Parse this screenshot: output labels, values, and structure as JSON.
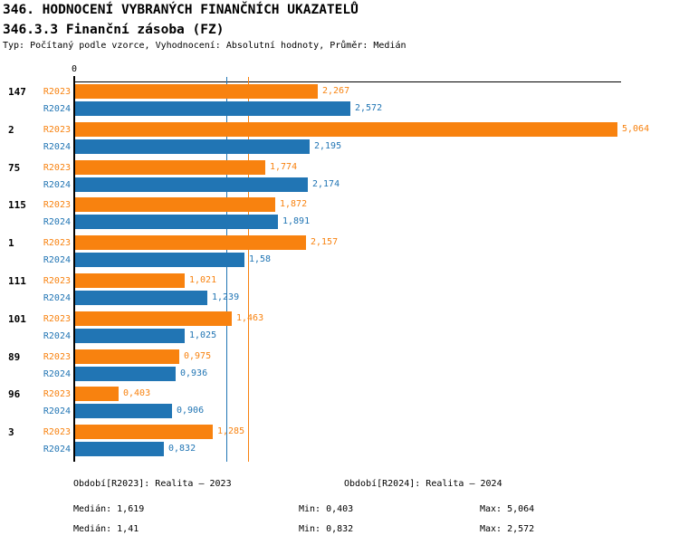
{
  "header": {
    "title": "346. HODNOCENÍ VYBRANÝCH FINANČNÍCH UKAZATELŮ",
    "subtitle": "346.3.3 Finanční zásoba (FZ)",
    "meta": "Typ: Počítaný podle vzorce, Vyhodnocení: Absolutní hodnoty, Průměr: Medián"
  },
  "colors": {
    "r2023": "#F8820F",
    "r2024": "#2175B4",
    "axis": "#000000"
  },
  "chart_data": {
    "type": "bar",
    "orientation": "horizontal",
    "title": "346.3.3 Finanční zásoba (FZ)",
    "xlabel": "",
    "ylabel": "",
    "xlim": [
      0,
      5.11
    ],
    "zero_label": "0",
    "grid": false,
    "legend_position": "none",
    "categories": [
      "147",
      "2",
      "75",
      "115",
      "1",
      "111",
      "101",
      "89",
      "96",
      "3"
    ],
    "series": [
      {
        "name": "R2023",
        "color": "#F8820F",
        "values": [
          2.267,
          5.064,
          1.774,
          1.872,
          2.157,
          1.021,
          1.463,
          0.975,
          0.403,
          1.285
        ],
        "labels": [
          "2,267",
          "5,064",
          "1,774",
          "1,872",
          "2,157",
          "1,021",
          "1,463",
          "0,975",
          "0,403",
          "1,285"
        ]
      },
      {
        "name": "R2024",
        "color": "#2175B4",
        "values": [
          2.572,
          2.195,
          2.174,
          1.891,
          1.58,
          1.239,
          1.025,
          0.936,
          0.906,
          0.832
        ],
        "labels": [
          "2,572",
          "2,195",
          "2,174",
          "1,891",
          "1,58",
          "1,239",
          "1,025",
          "0,936",
          "0,906",
          "0,832"
        ]
      }
    ],
    "reference_lines": [
      {
        "name": "median-2023",
        "value": 1.619,
        "color": "#F8820F"
      },
      {
        "name": "median-2024",
        "value": 1.41,
        "color": "#2175B4"
      }
    ]
  },
  "footer": {
    "period_2023": "Období[R2023]: Realita – 2023",
    "period_2024": "Období[R2024]: Realita – 2024",
    "stats_2023": {
      "median": "Medián: 1,619",
      "min": "Min: 0,403",
      "max": "Max: 5,064"
    },
    "stats_2024": {
      "median": "Medián: 1,41",
      "min": "Min: 0,832",
      "max": "Max: 2,572"
    }
  }
}
